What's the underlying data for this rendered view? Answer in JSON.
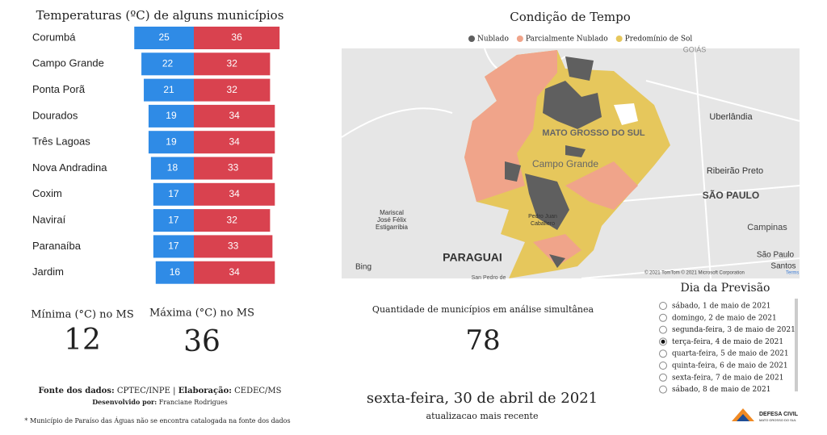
{
  "chart_data": {
    "type": "bar",
    "title": "Temperaturas (ºC) de alguns municípios",
    "categories": [
      "Corumbá",
      "Campo Grande",
      "Ponta Porã",
      "Dourados",
      "Três Lagoas",
      "Nova Andradina",
      "Coxim",
      "Naviraí",
      "Paranaíba",
      "Jardim"
    ],
    "series": [
      {
        "name": "Mínima",
        "color": "#2f8be6",
        "values": [
          25,
          22,
          21,
          19,
          19,
          18,
          17,
          17,
          17,
          16
        ]
      },
      {
        "name": "Máxima",
        "color": "#d9424f",
        "values": [
          36,
          32,
          32,
          34,
          34,
          33,
          34,
          32,
          33,
          34
        ]
      }
    ]
  },
  "map": {
    "title": "Condição de Tempo",
    "legend": [
      {
        "name": "Nublado",
        "color": "#5f5f5f"
      },
      {
        "name": "Parcialmente Nublado",
        "color": "#f0a48a"
      },
      {
        "name": "Predomínio de Sol",
        "color": "#e6c75c"
      }
    ],
    "labels": [
      "GOIÁS",
      "MATO GROSSO DO SUL",
      "Uberlândia",
      "Campo Grande",
      "Ribeirão Preto",
      "SÃO PAULO",
      "Mariscal",
      "José Félix",
      "Estigarribia",
      "Pedro Juan",
      "Caballero",
      "Campinas",
      "PARAGUAI",
      "São Paulo",
      "Santos",
      "San Pedro de",
      "Bing",
      "© 2021 TomTom © 2021 Microsoft Corporation",
      "Terms"
    ]
  },
  "stats": {
    "min_label": "Mínima (°C) no MS",
    "min_value": "12",
    "max_label": "Máxima (°C) no MS",
    "max_value": "36",
    "count_label": "Quantidade de municípios em análise simultânea",
    "count_value": "78",
    "updated_date": "sexta-feira, 30 de abril de 2021",
    "updated_label": "atualizacao mais recente"
  },
  "forecast": {
    "title": "Dia da Previsão",
    "selected": 3,
    "days": [
      "sábado, 1 de maio de 2021",
      "domingo, 2 de maio de 2021",
      "segunda-feira, 3 de maio de 2021",
      "terça-feira, 4 de maio de 2021",
      "quarta-feira, 5 de maio de 2021",
      "quinta-feira, 6 de maio de 2021",
      "sexta-feira, 7 de maio de 2021",
      "sábado, 8 de maio de 2021"
    ]
  },
  "footer": {
    "source_label": "Fonte dos dados:",
    "source": "CPTEC/INPE | ",
    "elab_label": "Elaboração:",
    "elab": "CEDEC/MS",
    "dev_label": "Desenvolvido por:",
    "dev": "Franciane Rodrigues",
    "note": "* Município de Paraíso das Águas não se encontra catalogada na fonte dos dados",
    "logo": "DEFESA CIVIL",
    "logo_sub": "MATO GROSSO DO SUL"
  }
}
